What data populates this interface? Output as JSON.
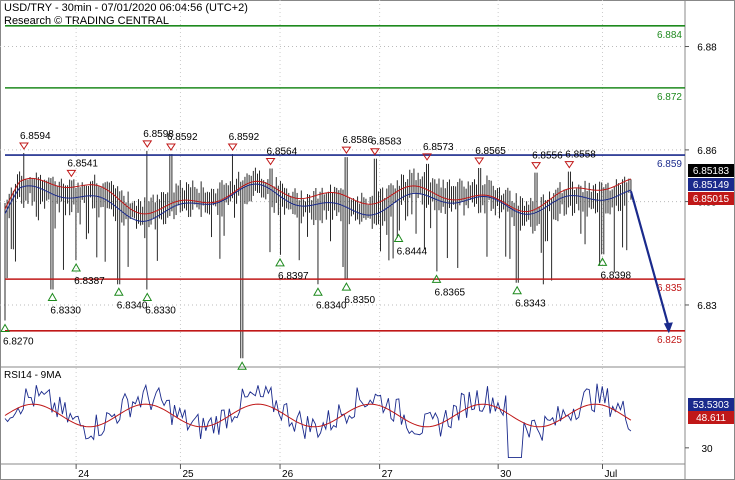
{
  "header": {
    "line1": "USD/TRY - 30min - 07/01/2020 06:04:56 (UTC+2)",
    "line2": "Research © TRADING CENTRAL"
  },
  "chart_data": {
    "type": "line",
    "price_panel": {
      "ylim": [
        6.818,
        6.889
      ],
      "y_ticks": [
        {
          "value": 6.83,
          "label": "6.83"
        },
        {
          "value": 6.85,
          "label": "6.85"
        },
        {
          "value": 6.86,
          "label": "6.86"
        },
        {
          "value": 6.88,
          "label": "6.88"
        }
      ],
      "levels": [
        {
          "value": 6.884,
          "label": "6.884",
          "color": "#1e8a1e"
        },
        {
          "value": 6.872,
          "label": "6.872",
          "color": "#1e8a1e"
        },
        {
          "value": 6.859,
          "label": "6.859",
          "color": "#1a2a8c"
        },
        {
          "value": 6.835,
          "label": "6.835",
          "color": "#c01818"
        },
        {
          "value": 6.825,
          "label": "6.825",
          "color": "#c01818"
        }
      ],
      "price_tags": [
        {
          "value": 6.85183,
          "label": "6.85183",
          "bg": "#000000",
          "fg": "#ffffff"
        },
        {
          "value": 6.85149,
          "label": "6.85149",
          "bg": "#1a2a8c",
          "fg": "#ffffff"
        },
        {
          "value": 6.85015,
          "label": "6.85015",
          "bg": "#c01818",
          "fg": "#ffffff"
        }
      ],
      "highs": [
        {
          "x": 0.2,
          "y": 6.8594,
          "label": "6.8594"
        },
        {
          "x": 0.7,
          "y": 6.8541,
          "label": "6.8541"
        },
        {
          "x": 1.5,
          "y": 6.8598,
          "label": "6.8598"
        },
        {
          "x": 1.75,
          "y": 6.8592,
          "label": "6.8592"
        },
        {
          "x": 2.4,
          "y": 6.8592,
          "label": "6.8592"
        },
        {
          "x": 2.8,
          "y": 6.8564,
          "label": "6.8564"
        },
        {
          "x": 3.6,
          "y": 6.8586,
          "label": "6.8586"
        },
        {
          "x": 3.9,
          "y": 6.8583,
          "label": "6.8583"
        },
        {
          "x": 4.45,
          "y": 6.8573,
          "label": "6.8573"
        },
        {
          "x": 5.0,
          "y": 6.8565,
          "label": "6.8565"
        },
        {
          "x": 5.6,
          "y": 6.8556,
          "label": "6.8556"
        },
        {
          "x": 5.95,
          "y": 6.8558,
          "label": "6.8558"
        }
      ],
      "lows": [
        {
          "x": 0.0,
          "y": 6.827,
          "label": "6.8270"
        },
        {
          "x": 0.5,
          "y": 6.833,
          "label": "6.8330"
        },
        {
          "x": 0.75,
          "y": 6.8387,
          "label": "6.8387"
        },
        {
          "x": 1.2,
          "y": 6.834,
          "label": "6.8340"
        },
        {
          "x": 1.5,
          "y": 6.833,
          "label": "6.8330"
        },
        {
          "x": 2.5,
          "y": 6.8197,
          "label": ""
        },
        {
          "x": 2.9,
          "y": 6.8397,
          "label": "6.8397"
        },
        {
          "x": 3.3,
          "y": 6.834,
          "label": "6.8340"
        },
        {
          "x": 3.6,
          "y": 6.835,
          "label": "6.8350"
        },
        {
          "x": 4.15,
          "y": 6.8444,
          "label": "6.8444"
        },
        {
          "x": 4.55,
          "y": 6.8365,
          "label": "6.8365"
        },
        {
          "x": 5.4,
          "y": 6.8343,
          "label": "6.8343"
        },
        {
          "x": 6.3,
          "y": 6.8398,
          "label": "6.8398"
        }
      ],
      "projection": {
        "from": [
          6.6,
          6.852
        ],
        "to": [
          7.0,
          6.8245
        ]
      }
    },
    "rsi_panel": {
      "title": "RSI14 - 9MA",
      "ylim": [
        20,
        80
      ],
      "y_ticks": [
        {
          "value": 30,
          "label": "30"
        }
      ],
      "tags": [
        {
          "value": 53.5303,
          "label": "53.5303",
          "bg": "#1a2a8c",
          "fg": "#ffffff"
        },
        {
          "value": 48.611,
          "label": "48.611",
          "bg": "#c01818",
          "fg": "#ffffff"
        }
      ]
    },
    "x_axis": {
      "labels": [
        {
          "x": 0.75,
          "label": "24"
        },
        {
          "x": 1.85,
          "label": "25"
        },
        {
          "x": 2.9,
          "label": "26"
        },
        {
          "x": 3.95,
          "label": "27"
        },
        {
          "x": 5.2,
          "label": "30"
        },
        {
          "x": 6.3,
          "label": "Jul"
        }
      ]
    }
  }
}
